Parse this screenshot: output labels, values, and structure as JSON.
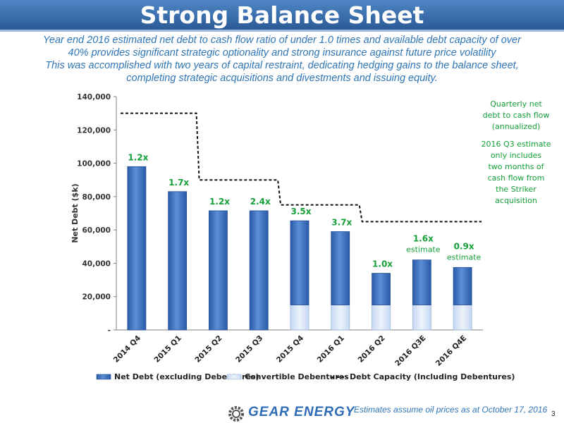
{
  "slide": {
    "title": "Strong Balance Sheet",
    "subtitle_lines": [
      "Year end 2016 estimated net debt to cash flow ratio of under 1.0 times and available debt capacity of over",
      "40% provides significant strategic optionality and strong insurance against future price volatility",
      "This was accomplished with two years of capital restraint, dedicating hedging gains to the balance sheet,",
      "completing strategic acquisitions and divestments and issuing equity."
    ],
    "side_note_1": [
      "Quarterly net",
      "debt to cash flow",
      "(annualized)"
    ],
    "side_note_2": [
      "2016 Q3 estimate",
      "only includes",
      "two months of",
      "cash flow from",
      "the Striker",
      "acquisition"
    ],
    "footer_note": "Estimates assume oil prices as at October 17, 2016",
    "logo_text": "GEAR ENERGY",
    "page_number": "3"
  },
  "colors": {
    "title_bar": "#3a6fb0",
    "net_debt": "#3a6fbe",
    "convertible": "#d5e3f6",
    "ratio_label": "#15a038",
    "text_accent": "#2e75b6"
  },
  "chart_data": {
    "type": "bar",
    "stacked": true,
    "categories": [
      "2014 Q4",
      "2015 Q1",
      "2015 Q2",
      "2015 Q3",
      "2015 Q4",
      "2016 Q1",
      "2016 Q2",
      "2016 Q3E",
      "2016 Q4E"
    ],
    "series": [
      {
        "name": "Convertible Debentures",
        "values": [
          0,
          0,
          0,
          0,
          15000,
          15000,
          15000,
          15000,
          15000
        ]
      },
      {
        "name": "Net Debt (excluding Debentures)",
        "values": [
          98000,
          83000,
          71500,
          71500,
          50500,
          44000,
          19000,
          27000,
          22500
        ]
      }
    ],
    "line": {
      "name": "Debt Capacity (Including Debentures)",
      "values": [
        130000,
        130000,
        90000,
        90000,
        75000,
        75000,
        65000,
        65000,
        65000
      ]
    },
    "bar_labels": [
      {
        "ratio": "1.2x",
        "sub": ""
      },
      {
        "ratio": "1.7x",
        "sub": ""
      },
      {
        "ratio": "1.2x",
        "sub": ""
      },
      {
        "ratio": "2.4x",
        "sub": ""
      },
      {
        "ratio": "3.5x",
        "sub": ""
      },
      {
        "ratio": "3.7x",
        "sub": ""
      },
      {
        "ratio": "1.0x",
        "sub": ""
      },
      {
        "ratio": "1.6x",
        "sub": "estimate"
      },
      {
        "ratio": "0.9x",
        "sub": "estimate"
      }
    ],
    "ylabel": "Net Debt ($k)",
    "ylim": [
      0,
      140000
    ],
    "yticks": [
      {
        "value": 0,
        "label": "-"
      },
      {
        "value": 20000,
        "label": "20,000"
      },
      {
        "value": 40000,
        "label": "40,000"
      },
      {
        "value": 60000,
        "label": "60,000"
      },
      {
        "value": 80000,
        "label": "80,000"
      },
      {
        "value": 100000,
        "label": "100,000"
      },
      {
        "value": 120000,
        "label": "120,000"
      },
      {
        "value": 140000,
        "label": "140,000"
      }
    ],
    "legend_position": "bottom",
    "grid": false
  }
}
